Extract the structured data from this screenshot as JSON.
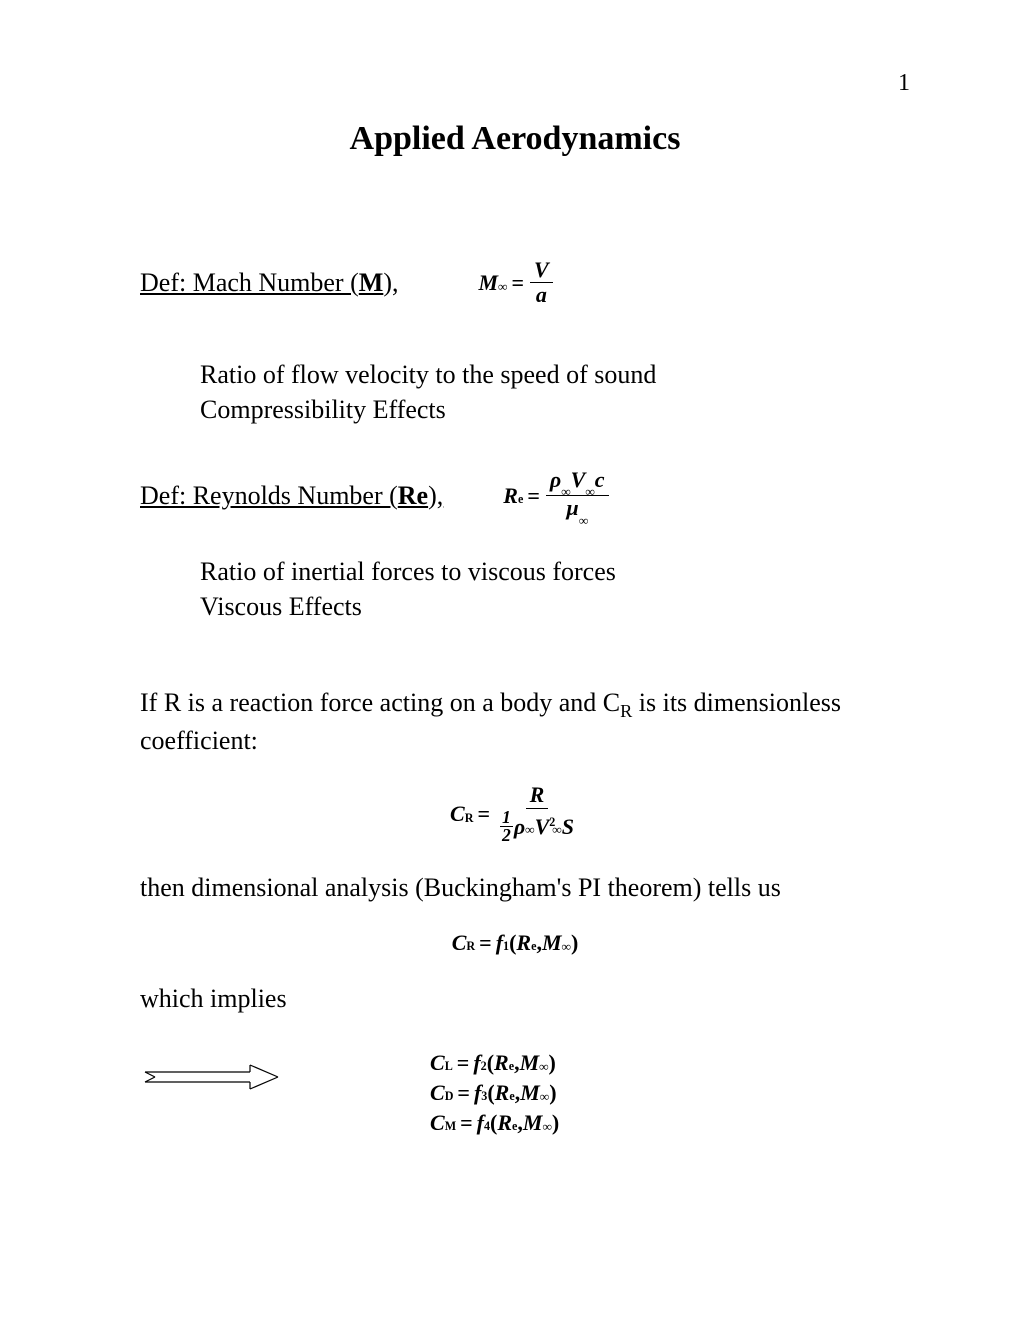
{
  "page_number": "1",
  "title": "Applied Aerodynamics",
  "def_mach": {
    "prefix": "Def: Mach Number (",
    "bold": "M",
    "suffix": "),",
    "formula": {
      "lhs_var": "M",
      "lhs_sub": "∞",
      "equals": "=",
      "num": "V",
      "den": "a"
    }
  },
  "mach_desc": {
    "line1": "Ratio of flow velocity to the speed of sound",
    "line2": "Compressibility Effects"
  },
  "def_reynolds": {
    "prefix": "Def: Reynolds Number (",
    "bold": "Re",
    "suffix": "),",
    "formula": {
      "lhs_var": "R",
      "lhs_sub": "e",
      "equals": "=",
      "num_parts": [
        "ρ",
        "∞",
        "V",
        "∞",
        "c"
      ],
      "den_parts": [
        "µ",
        "∞"
      ]
    }
  },
  "reynolds_desc": {
    "line1": "Ratio of inertial forces to viscous forces",
    "line2": "Viscous Effects"
  },
  "reaction_text": {
    "part1": "If R is a reaction force acting on a body and C",
    "subR": "R",
    "part2": " is its dimensionless coefficient:"
  },
  "cr_formula": {
    "lhs_var": "C",
    "lhs_sub": "R",
    "equals": "=",
    "num": "R",
    "den_half_num": "1",
    "den_half_den": "2",
    "den_rho": "ρ",
    "den_rho_sub": "∞",
    "den_V": "V",
    "den_V_sub": "∞",
    "den_V_sup": "2",
    "den_S": "S"
  },
  "buckingham_text": "then dimensional analysis (Buckingham's PI theorem) tells us",
  "cr_func": {
    "C": "C",
    "Csub": "R",
    "eq": "=",
    "f": "f",
    "fsub": "1",
    "open": "(",
    "R": "R",
    "Rsub": "e",
    "comma": ",",
    "M": "M",
    "Msub": "∞",
    "close": ")"
  },
  "which_implies": "which implies",
  "arrow": {
    "width": 140,
    "height": 32,
    "stroke": "#000000",
    "stroke_width": 1.2
  },
  "implies_lines": [
    {
      "C": "C",
      "Csub": "L",
      "eq": "=",
      "f": "f",
      "fsub": "2",
      "open": "(",
      "R": "R",
      "Rsub": "e",
      "comma": ",",
      "M": "M",
      "Msub": "∞",
      "close": ")"
    },
    {
      "C": "C",
      "Csub": "D",
      "eq": "=",
      "f": "f",
      "fsub": "3",
      "open": "(",
      "R": "R",
      "Rsub": "e",
      "comma": ",",
      "M": "M",
      "Msub": "∞",
      "close": ")"
    },
    {
      "C": "C",
      "Csub": "M",
      "eq": "=",
      "f": "f",
      "fsub": "4",
      "open": "(",
      "R": "R",
      "Rsub": "e",
      "comma": ",",
      "M": "M",
      "Msub": "∞",
      "close": ")"
    }
  ],
  "colors": {
    "text": "#000000",
    "background": "#ffffff"
  },
  "fonts": {
    "family": "Times New Roman",
    "title_size_pt": 26,
    "body_size_pt": 20,
    "formula_size_pt": 17
  }
}
